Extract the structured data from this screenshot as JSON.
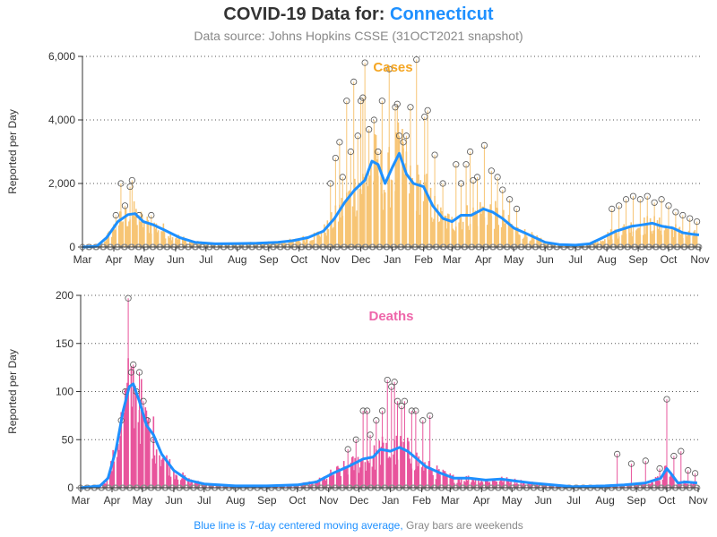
{
  "header": {
    "title_prefix": "COVID-19 Data for:",
    "state": "Connecticut",
    "subtitle": "Data source: Johns Hopkins CSSE (31OCT2021 snapshot)"
  },
  "footer": {
    "blue_text": "Blue line is 7-day centered moving average,",
    "gray_text": "Gray bars are weekends"
  },
  "colors": {
    "cases": "#f5a623",
    "cases_bar": "#f7c575",
    "deaths": "#ee66aa",
    "deaths_bar": "#e8559c",
    "moving_average": "#1e90ff",
    "weekend": "#888888",
    "marker": "#555555"
  },
  "chart_data": [
    {
      "type": "bar",
      "title": "Cases",
      "ylabel": "Reported per Day",
      "ylim": [
        0,
        6000
      ],
      "yticks": [
        0,
        2000,
        4000,
        6000
      ],
      "ytick_labels": [
        "0",
        "2,000",
        "4,000",
        "6,000"
      ],
      "x_tick_labels": [
        "Mar",
        "Apr",
        "May",
        "Jun",
        "Jul",
        "Aug",
        "Sep",
        "Oct",
        "Nov",
        "Dec",
        "Jan",
        "Feb",
        "Mar",
        "Apr",
        "May",
        "Jun",
        "Jul",
        "Aug",
        "Sep",
        "Oct",
        "Nov"
      ],
      "x_start": "2020-03-01",
      "x_end": "2021-11-01",
      "grid": "horizontal dotted",
      "series": [
        {
          "name": "",
          "kind": "7-day moving average",
          "points": [
            [
              "2020-03-01",
              0
            ],
            [
              "2020-03-15",
              20
            ],
            [
              "2020-03-25",
              300
            ],
            [
              "2020-04-05",
              800
            ],
            [
              "2020-04-15",
              1020
            ],
            [
              "2020-04-22",
              1050
            ],
            [
              "2020-04-30",
              800
            ],
            [
              "2020-05-10",
              700
            ],
            [
              "2020-05-20",
              550
            ],
            [
              "2020-06-05",
              300
            ],
            [
              "2020-06-20",
              150
            ],
            [
              "2020-07-10",
              100
            ],
            [
              "2020-08-01",
              110
            ],
            [
              "2020-08-20",
              120
            ],
            [
              "2020-09-10",
              150
            ],
            [
              "2020-09-25",
              200
            ],
            [
              "2020-10-10",
              300
            ],
            [
              "2020-10-25",
              500
            ],
            [
              "2020-11-05",
              900
            ],
            [
              "2020-11-15",
              1400
            ],
            [
              "2020-11-25",
              1800
            ],
            [
              "2020-12-05",
              2100
            ],
            [
              "2020-12-12",
              2700
            ],
            [
              "2020-12-18",
              2600
            ],
            [
              "2020-12-25",
              2000
            ],
            [
              "2021-01-01",
              2500
            ],
            [
              "2021-01-08",
              2950
            ],
            [
              "2021-01-15",
              2300
            ],
            [
              "2021-01-22",
              2000
            ],
            [
              "2021-02-01",
              1900
            ],
            [
              "2021-02-10",
              1300
            ],
            [
              "2021-02-20",
              900
            ],
            [
              "2021-03-01",
              800
            ],
            [
              "2021-03-10",
              1000
            ],
            [
              "2021-03-20",
              1000
            ],
            [
              "2021-04-01",
              1200
            ],
            [
              "2021-04-10",
              1100
            ],
            [
              "2021-04-20",
              900
            ],
            [
              "2021-05-01",
              600
            ],
            [
              "2021-05-15",
              400
            ],
            [
              "2021-06-01",
              150
            ],
            [
              "2021-06-15",
              80
            ],
            [
              "2021-07-01",
              60
            ],
            [
              "2021-07-15",
              100
            ],
            [
              "2021-07-25",
              250
            ],
            [
              "2021-08-10",
              500
            ],
            [
              "2021-08-25",
              650
            ],
            [
              "2021-09-05",
              700
            ],
            [
              "2021-09-15",
              750
            ],
            [
              "2021-09-25",
              650
            ],
            [
              "2021-10-05",
              600
            ],
            [
              "2021-10-15",
              450
            ],
            [
              "2021-10-25",
              400
            ],
            [
              "2021-10-31",
              380
            ]
          ]
        },
        {
          "name": "",
          "kind": "daily reported",
          "points": [
            [
              "2020-04-03",
              1000
            ],
            [
              "2020-04-08",
              2000
            ],
            [
              "2020-04-12",
              1300
            ],
            [
              "2020-04-17",
              1900
            ],
            [
              "2020-04-19",
              2100
            ],
            [
              "2020-04-26",
              1000
            ],
            [
              "2020-05-08",
              1000
            ],
            [
              "2020-11-01",
              2000
            ],
            [
              "2020-11-06",
              2800
            ],
            [
              "2020-11-10",
              3300
            ],
            [
              "2020-11-13",
              2200
            ],
            [
              "2020-11-17",
              4600
            ],
            [
              "2020-11-21",
              3000
            ],
            [
              "2020-11-24",
              5200
            ],
            [
              "2020-11-28",
              3500
            ],
            [
              "2020-12-01",
              4600
            ],
            [
              "2020-12-03",
              4700
            ],
            [
              "2020-12-05",
              5800
            ],
            [
              "2020-12-09",
              3700
            ],
            [
              "2020-12-14",
              4000
            ],
            [
              "2020-12-18",
              3000
            ],
            [
              "2020-12-22",
              4600
            ],
            [
              "2020-12-29",
              5600
            ],
            [
              "2021-01-04",
              4400
            ],
            [
              "2021-01-06",
              4500
            ],
            [
              "2021-01-08",
              3500
            ],
            [
              "2021-01-12",
              3300
            ],
            [
              "2021-01-15",
              3500
            ],
            [
              "2021-01-19",
              4400
            ],
            [
              "2021-01-25",
              5900
            ],
            [
              "2021-02-02",
              4100
            ],
            [
              "2021-02-05",
              4300
            ],
            [
              "2021-02-12",
              2900
            ],
            [
              "2021-02-20",
              2000
            ],
            [
              "2021-03-05",
              2600
            ],
            [
              "2021-03-10",
              2000
            ],
            [
              "2021-03-15",
              2600
            ],
            [
              "2021-03-19",
              3000
            ],
            [
              "2021-03-22",
              2100
            ],
            [
              "2021-03-26",
              2200
            ],
            [
              "2021-04-02",
              3200
            ],
            [
              "2021-04-09",
              2400
            ],
            [
              "2021-04-15",
              2200
            ],
            [
              "2021-04-20",
              1800
            ],
            [
              "2021-04-27",
              1500
            ],
            [
              "2021-05-04",
              1200
            ],
            [
              "2021-08-06",
              1200
            ],
            [
              "2021-08-13",
              1300
            ],
            [
              "2021-08-20",
              1500
            ],
            [
              "2021-08-27",
              1600
            ],
            [
              "2021-09-03",
              1500
            ],
            [
              "2021-09-10",
              1600
            ],
            [
              "2021-09-17",
              1400
            ],
            [
              "2021-09-24",
              1500
            ],
            [
              "2021-10-01",
              1300
            ],
            [
              "2021-10-08",
              1100
            ],
            [
              "2021-10-15",
              1000
            ],
            [
              "2021-10-22",
              900
            ],
            [
              "2021-10-29",
              800
            ]
          ]
        }
      ]
    },
    {
      "type": "bar",
      "title": "Deaths",
      "ylabel": "Reported per Day",
      "ylim": [
        0,
        200
      ],
      "yticks": [
        0,
        50,
        100,
        150,
        200
      ],
      "ytick_labels": [
        "0",
        "50",
        "100",
        "150",
        "200"
      ],
      "x_tick_labels": [
        "Mar",
        "Apr",
        "May",
        "Jun",
        "Jul",
        "Aug",
        "Sep",
        "Oct",
        "Nov",
        "Dec",
        "Jan",
        "Feb",
        "Mar",
        "Apr",
        "May",
        "Jun",
        "Jul",
        "Aug",
        "Sep",
        "Oct",
        "Nov"
      ],
      "x_start": "2020-03-01",
      "x_end": "2021-11-01",
      "grid": "horizontal dotted",
      "series": [
        {
          "name": "",
          "kind": "7-day moving average",
          "points": [
            [
              "2020-03-01",
              0
            ],
            [
              "2020-03-20",
              2
            ],
            [
              "2020-03-28",
              10
            ],
            [
              "2020-04-05",
              40
            ],
            [
              "2020-04-12",
              80
            ],
            [
              "2020-04-18",
              105
            ],
            [
              "2020-04-22",
              108
            ],
            [
              "2020-04-28",
              90
            ],
            [
              "2020-05-05",
              65
            ],
            [
              "2020-05-12",
              55
            ],
            [
              "2020-05-20",
              35
            ],
            [
              "2020-06-01",
              18
            ],
            [
              "2020-06-15",
              8
            ],
            [
              "2020-07-01",
              4
            ],
            [
              "2020-08-01",
              2
            ],
            [
              "2020-09-01",
              2
            ],
            [
              "2020-10-01",
              3
            ],
            [
              "2020-10-20",
              6
            ],
            [
              "2020-11-05",
              15
            ],
            [
              "2020-11-20",
              22
            ],
            [
              "2020-12-05",
              30
            ],
            [
              "2020-12-15",
              32
            ],
            [
              "2020-12-22",
              40
            ],
            [
              "2021-01-01",
              38
            ],
            [
              "2021-01-10",
              42
            ],
            [
              "2021-01-18",
              38
            ],
            [
              "2021-01-25",
              32
            ],
            [
              "2021-02-05",
              22
            ],
            [
              "2021-02-20",
              15
            ],
            [
              "2021-03-05",
              10
            ],
            [
              "2021-03-20",
              10
            ],
            [
              "2021-04-05",
              8
            ],
            [
              "2021-04-20",
              9
            ],
            [
              "2021-05-05",
              7
            ],
            [
              "2021-05-20",
              5
            ],
            [
              "2021-06-10",
              3
            ],
            [
              "2021-07-01",
              1
            ],
            [
              "2021-08-01",
              2
            ],
            [
              "2021-08-20",
              3
            ],
            [
              "2021-09-10",
              5
            ],
            [
              "2021-09-25",
              10
            ],
            [
              "2021-10-01",
              20
            ],
            [
              "2021-10-05",
              15
            ],
            [
              "2021-10-12",
              5
            ],
            [
              "2021-10-20",
              6
            ],
            [
              "2021-10-31",
              5
            ]
          ]
        },
        {
          "name": "",
          "kind": "daily reported",
          "points": [
            [
              "2020-04-10",
              70
            ],
            [
              "2020-04-14",
              100
            ],
            [
              "2020-04-17",
              197
            ],
            [
              "2020-04-20",
              120
            ],
            [
              "2020-04-22",
              128
            ],
            [
              "2020-04-25",
              100
            ],
            [
              "2020-04-28",
              120
            ],
            [
              "2020-05-02",
              90
            ],
            [
              "2020-05-06",
              70
            ],
            [
              "2020-05-12",
              50
            ],
            [
              "2020-11-20",
              40
            ],
            [
              "2020-11-28",
              50
            ],
            [
              "2020-12-05",
              80
            ],
            [
              "2020-12-09",
              80
            ],
            [
              "2020-12-12",
              55
            ],
            [
              "2020-12-18",
              70
            ],
            [
              "2020-12-24",
              80
            ],
            [
              "2020-12-29",
              112
            ],
            [
              "2021-01-02",
              105
            ],
            [
              "2021-01-05",
              110
            ],
            [
              "2021-01-08",
              90
            ],
            [
              "2021-01-12",
              85
            ],
            [
              "2021-01-15",
              90
            ],
            [
              "2021-01-22",
              80
            ],
            [
              "2021-01-26",
              80
            ],
            [
              "2021-02-02",
              70
            ],
            [
              "2021-02-09",
              75
            ],
            [
              "2021-08-13",
              35
            ],
            [
              "2021-08-27",
              25
            ],
            [
              "2021-09-10",
              28
            ],
            [
              "2021-09-24",
              20
            ],
            [
              "2021-10-01",
              92
            ],
            [
              "2021-10-08",
              33
            ],
            [
              "2021-10-15",
              38
            ],
            [
              "2021-10-22",
              18
            ],
            [
              "2021-10-29",
              15
            ]
          ]
        }
      ]
    }
  ]
}
